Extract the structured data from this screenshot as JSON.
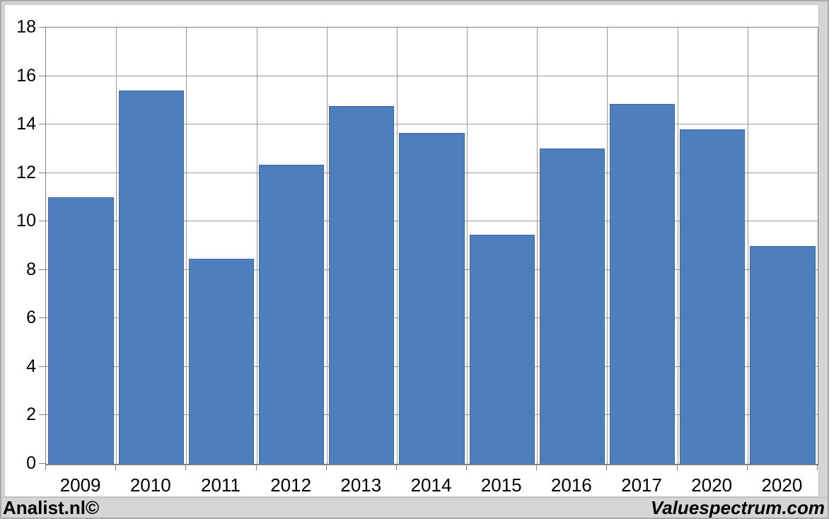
{
  "chart_data": {
    "type": "bar",
    "title": "",
    "xlabel": "",
    "ylabel": "",
    "categories": [
      "2009",
      "2010",
      "2011",
      "2012",
      "2013",
      "2014",
      "2015",
      "2016",
      "2017",
      "2020",
      "2020"
    ],
    "values": [
      11.0,
      15.4,
      8.45,
      12.35,
      14.75,
      13.65,
      9.45,
      13.0,
      14.85,
      13.8,
      9.0
    ],
    "ylim": [
      0,
      18
    ],
    "ytick_step": 2,
    "ytick_labels": [
      "0",
      "2",
      "4",
      "6",
      "8",
      "10",
      "12",
      "14",
      "16",
      "18"
    ],
    "grid": true,
    "legend": null,
    "colors": {
      "bar_fill": "#4d7ebd",
      "bar_border": "#3e68a0",
      "gridline": "#9b9b9b",
      "axis": "#7f7f7f",
      "frame_background": "#d5d5d5",
      "frame_edge": "#a9a9a9",
      "panel_background": "#ffffff",
      "text": "#000000"
    }
  },
  "footer": {
    "left": "Analist.nl©",
    "right": "Valuespectrum.com"
  }
}
